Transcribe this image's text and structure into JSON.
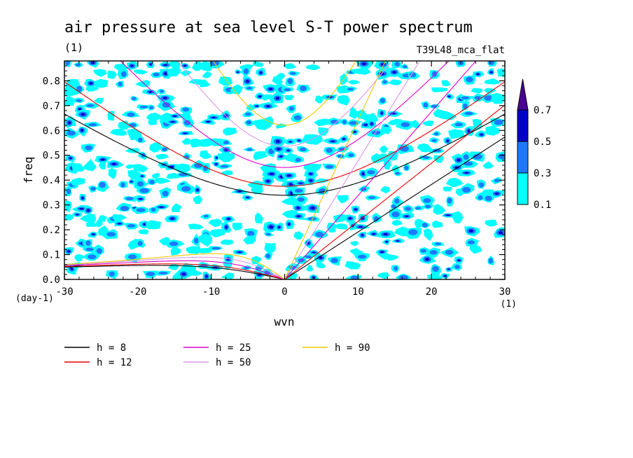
{
  "chart_data": {
    "type": "contour",
    "title": "air pressure at sea level S-T power spectrum",
    "subtitle": "(1)",
    "run_label": "T39L48_mca_flat",
    "xlabel": "wvn",
    "ylabel": "freq",
    "x_unit": "(1)",
    "y_unit": "(day-1)",
    "xlim": [
      -30,
      30
    ],
    "ylim": [
      0.0,
      0.88
    ],
    "x_ticks": [
      -30,
      -20,
      -10,
      0,
      10,
      20,
      30
    ],
    "x_tick_labels": [
      "-30",
      "-20",
      "-10",
      "0",
      "10",
      "20",
      "30"
    ],
    "y_ticks": [
      0.0,
      0.1,
      0.2,
      0.3,
      0.4,
      0.5,
      0.6,
      0.7,
      0.8
    ],
    "y_tick_labels": [
      "0.0",
      "0.1",
      "0.2",
      "0.3",
      "0.4",
      "0.5",
      "0.6",
      "0.7",
      "0.8"
    ],
    "colorbar": {
      "levels": [
        0.1,
        0.3,
        0.5,
        0.7
      ],
      "level_labels": [
        "0.1",
        "0.3",
        "0.5",
        "0.7"
      ],
      "colors": [
        "#00ffff",
        "#1e78ff",
        "#0000c8",
        "#4b0096"
      ]
    },
    "dispersion_curves": [
      {
        "label": "h =  8",
        "h": 8,
        "color": "#000000"
      },
      {
        "label": "h = 12",
        "h": 12,
        "color": "#e60000"
      },
      {
        "label": "h = 25",
        "h": 25,
        "color": "#dc00c8"
      },
      {
        "label": "h = 50",
        "h": 50,
        "color": "#dc96e6"
      },
      {
        "label": "h = 90",
        "h": 90,
        "color": "#f0c800"
      }
    ]
  }
}
